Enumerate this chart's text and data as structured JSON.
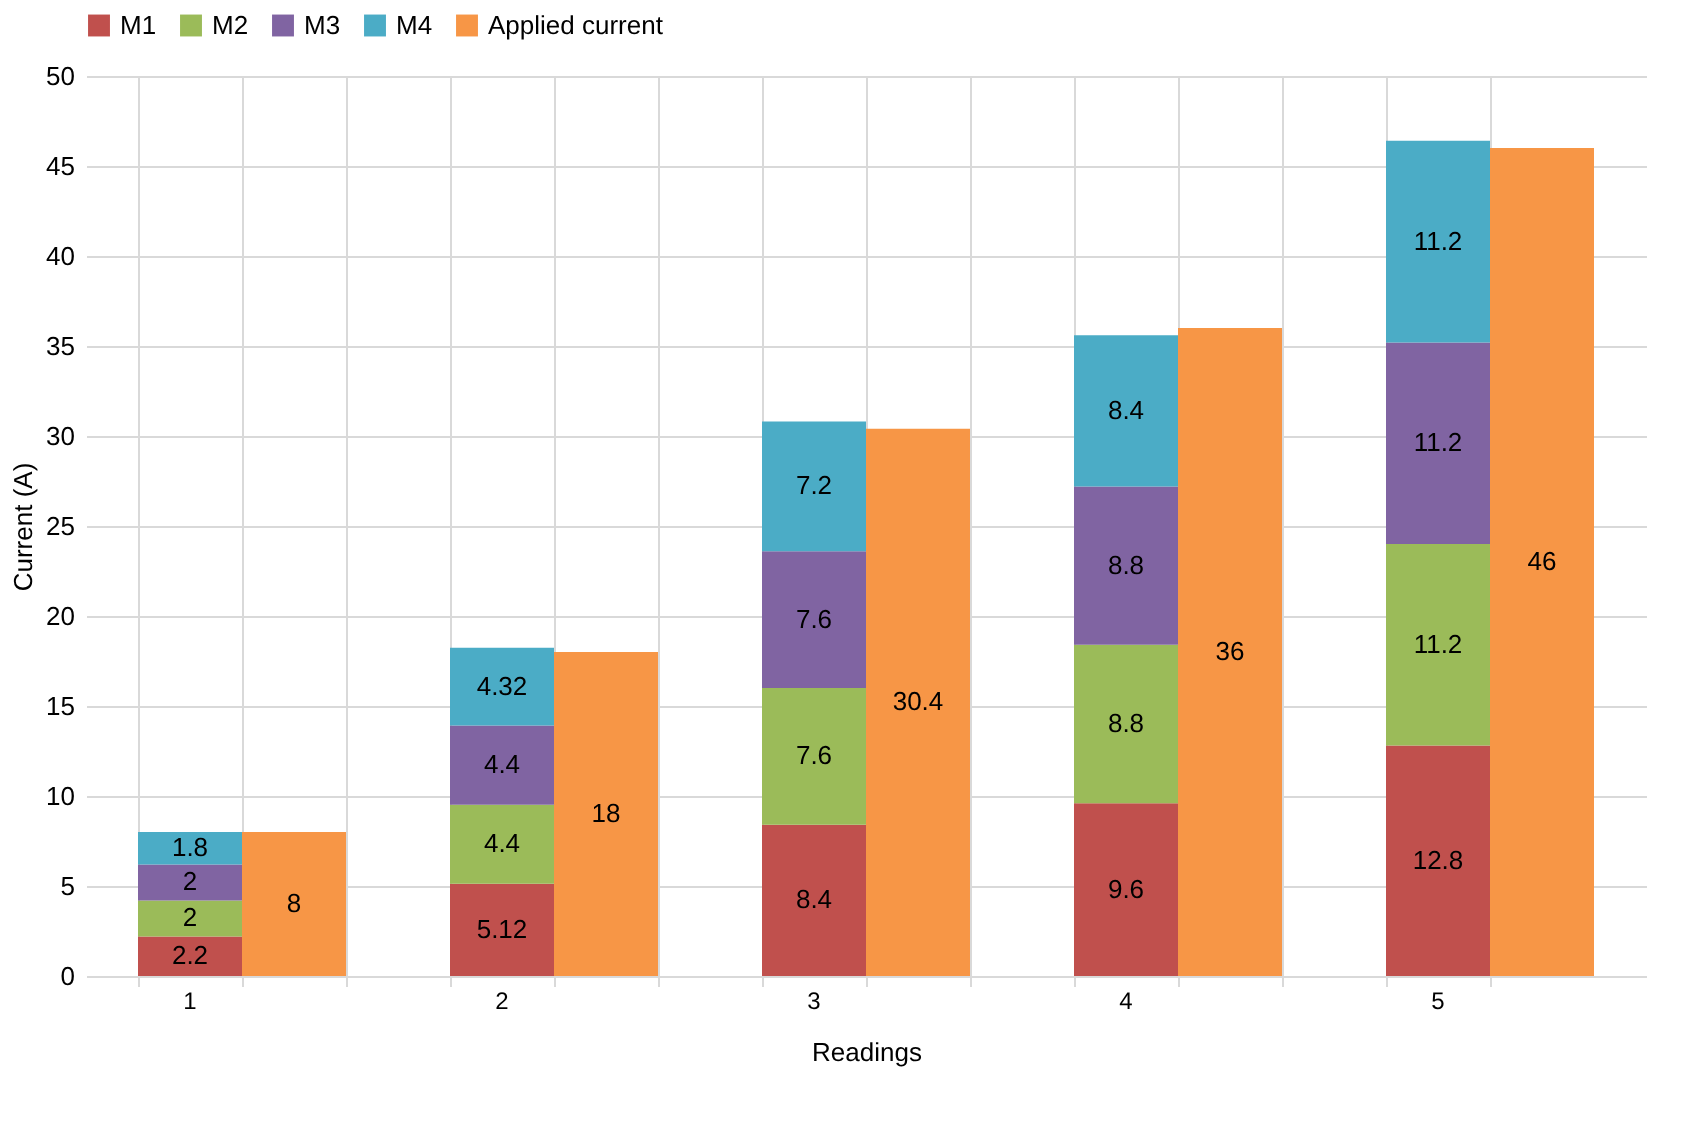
{
  "chart_data": {
    "type": "bar",
    "stacked": true,
    "xlabel": "Readings",
    "ylabel": "Current (A)",
    "categories": [
      "1",
      null,
      null,
      "2",
      null,
      null,
      "3",
      null,
      null,
      "4",
      null,
      null,
      "5",
      null
    ],
    "series": [
      {
        "name": "M1",
        "color": "#c0504d",
        "values": [
          2.2,
          null,
          null,
          5.12,
          null,
          null,
          8.4,
          null,
          null,
          9.6,
          null,
          null,
          12.8,
          null
        ]
      },
      {
        "name": "M2",
        "color": "#9bbb59",
        "values": [
          2,
          null,
          null,
          4.4,
          null,
          null,
          7.6,
          null,
          null,
          8.8,
          null,
          null,
          11.2,
          null
        ]
      },
      {
        "name": "M3",
        "color": "#8064a2",
        "values": [
          2,
          null,
          null,
          4.4,
          null,
          null,
          7.6,
          null,
          null,
          8.8,
          null,
          null,
          11.2,
          null
        ]
      },
      {
        "name": "M4",
        "color": "#4bacc6",
        "values": [
          1.8,
          null,
          null,
          4.32,
          null,
          null,
          7.2,
          null,
          null,
          8.4,
          null,
          null,
          11.2,
          null
        ]
      },
      {
        "name": "Applied current",
        "color": "#f79646",
        "values": [
          null,
          8,
          null,
          null,
          18,
          null,
          null,
          30.4,
          null,
          null,
          36,
          null,
          null,
          46
        ]
      }
    ],
    "ylim": [
      0,
      50
    ],
    "yticks": [
      0,
      5,
      10,
      15,
      20,
      25,
      30,
      35,
      40,
      45,
      50
    ],
    "grid": true,
    "legend": "top",
    "data_labels": true
  }
}
